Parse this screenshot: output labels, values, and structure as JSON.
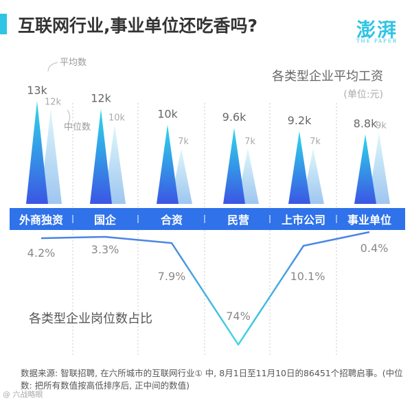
{
  "header": {
    "title": "互联网行业,事业单位还吃香吗?",
    "logo_text": "澎湃",
    "logo_sub": "THE PAPER"
  },
  "chart_data": [
    {
      "type": "bar",
      "title": "各类型企业平均工资",
      "subtitle": "(单位:元)",
      "categories": [
        "外商独资",
        "国企",
        "合资",
        "民营",
        "上市公司",
        "事业单位"
      ],
      "series": [
        {
          "name": "平均数",
          "values": [
            13000,
            12000,
            10000,
            9600,
            9200,
            8800
          ],
          "labels": [
            "13k",
            "12k",
            "10k",
            "9.6k",
            "9.2k",
            "8.8k"
          ]
        },
        {
          "name": "中位数",
          "values": [
            12000,
            10000,
            7000,
            7000,
            7000,
            9000
          ],
          "labels": [
            "12k",
            "10k",
            "7k",
            "7k",
            "7k",
            "9k"
          ]
        }
      ],
      "colors": {
        "mean": "#3b64e8",
        "median": "#aee8f4",
        "band": "#2f72ea"
      }
    },
    {
      "type": "line",
      "title": "各类型企业岗位数占比",
      "categories": [
        "外商独资",
        "国企",
        "合资",
        "民营",
        "上市公司",
        "事业单位"
      ],
      "values": [
        4.2,
        3.3,
        7.9,
        74,
        10.1,
        0.4
      ],
      "labels": [
        "4.2%",
        "3.3%",
        "7.9%",
        "74%",
        "10.1%",
        "0.4%"
      ]
    }
  ],
  "source_note": "数据来源: 智联招聘, 在六所城市的互联网行业① 中, 8月1日至11月10日的86451个招聘启事。(中位数: 把所有数值按高低排序后, 正中间的数值)",
  "watermark": "@ 六战略眼"
}
